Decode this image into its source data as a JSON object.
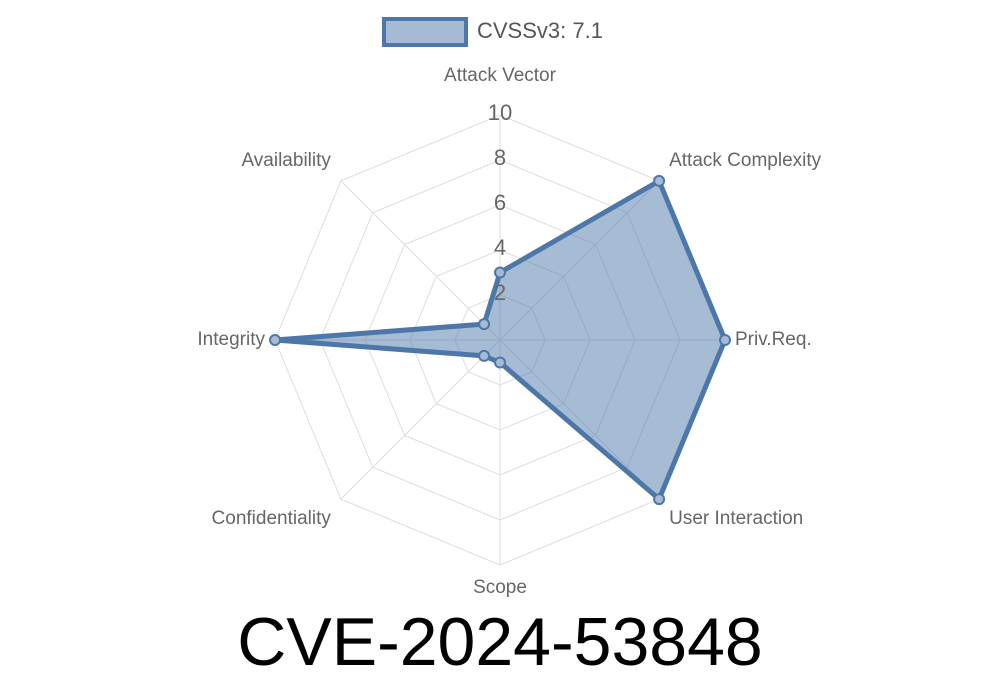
{
  "chart_data": {
    "type": "radar",
    "title": "CVE-2024-53848",
    "categories": [
      "Attack Vector",
      "Attack Complexity",
      "Priv.Req.",
      "User Interaction",
      "Scope",
      "Confidentiality",
      "Integrity",
      "Availability"
    ],
    "series": [
      {
        "name": "CVSSv3: 7.1",
        "color": "#4e77a9",
        "values": [
          3,
          10,
          10,
          10,
          1,
          1,
          10,
          1
        ]
      }
    ],
    "ylim": [
      0,
      10
    ],
    "yticks": [
      2,
      4,
      6,
      8,
      10
    ],
    "grid": true,
    "legend": "top"
  }
}
